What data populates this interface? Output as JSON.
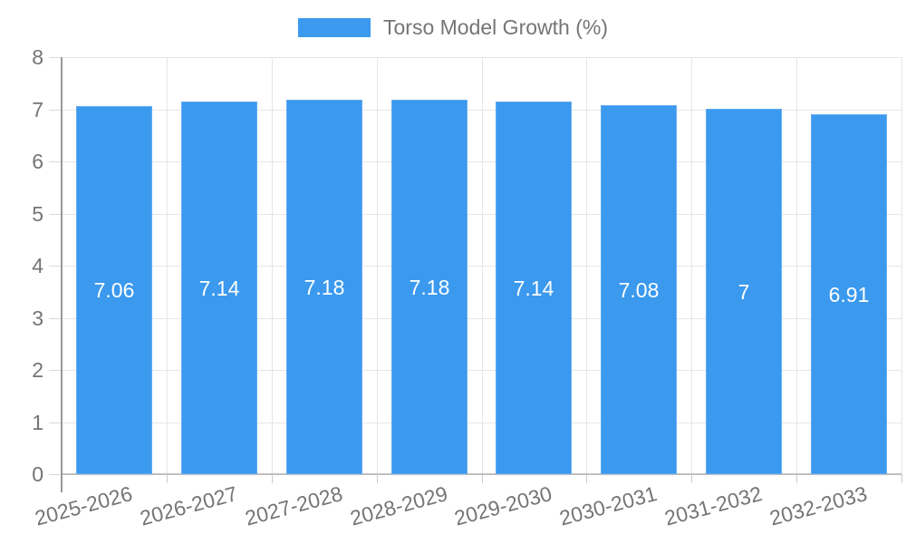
{
  "chart_data": {
    "type": "bar",
    "title": "Torso Model Growth (%)",
    "legend": [
      {
        "label": "Torso Model Growth (%)",
        "color": "#3B99EE"
      }
    ],
    "legend_position": "top-center",
    "categories": [
      "2025-2026",
      "2026-2027",
      "2027-2028",
      "2028-2029",
      "2029-2030",
      "2030-2031",
      "2031-2032",
      "2032-2033"
    ],
    "values": [
      7.06,
      7.14,
      7.18,
      7.18,
      7.14,
      7.08,
      7,
      6.91
    ],
    "value_labels": [
      "7.06",
      "7.14",
      "7.18",
      "7.18",
      "7.14",
      "7.08",
      "7",
      "6.91"
    ],
    "xlabel": "",
    "ylabel": "",
    "ylim": [
      0,
      8
    ],
    "yticks": [
      0,
      1,
      2,
      3,
      4,
      5,
      6,
      7,
      8
    ],
    "grid": true,
    "x_label_rotation_deg": -15,
    "colors": {
      "bar": "#3B99EE",
      "bar_value_text": "#FFFFFF",
      "axis_text": "#757575",
      "grid": "#E6E6E6",
      "axis_line": "#999999",
      "tick": "#CCCCCC",
      "background": "#FFFFFF"
    }
  }
}
